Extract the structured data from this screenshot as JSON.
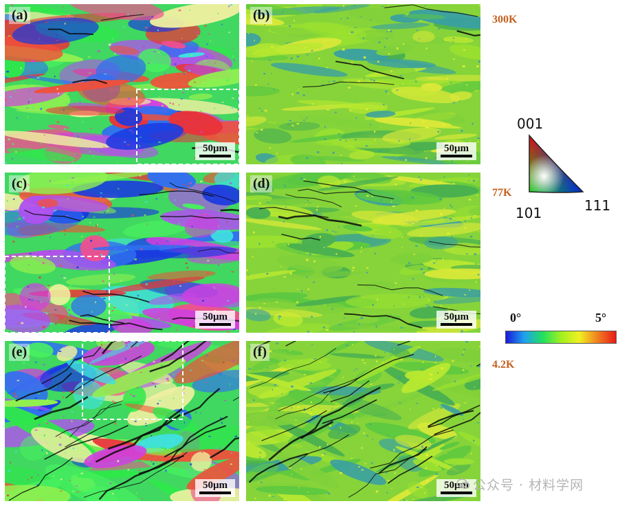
{
  "panels": [
    {
      "id": "a",
      "label": "(a)",
      "scale": "50μm",
      "kind": "ipf",
      "seed": 11,
      "dashes": true
    },
    {
      "id": "b",
      "label": "(b)",
      "scale": "50μm",
      "kind": "kam",
      "seed": 12,
      "dashes": false
    },
    {
      "id": "c",
      "label": "(c)",
      "scale": "50μm",
      "kind": "ipf",
      "seed": 21,
      "dashes": true
    },
    {
      "id": "d",
      "label": "(d)",
      "scale": "50μm",
      "kind": "kam",
      "seed": 22,
      "dashes": false
    },
    {
      "id": "e",
      "label": "(e)",
      "scale": "50μm",
      "kind": "ipf",
      "seed": 31,
      "dashes": true
    },
    {
      "id": "f",
      "label": "(f)",
      "scale": "50μm",
      "kind": "kam",
      "seed": 32,
      "dashes": false
    }
  ],
  "temperatures": [
    "300K",
    "77K",
    "4.2K"
  ],
  "ipf_legend": {
    "top": "001",
    "left": "101",
    "right": "111"
  },
  "kam_legend": {
    "min": "0°",
    "max": "5°",
    "colors": [
      "#1a1ad8",
      "#1fa0f0",
      "#20e060",
      "#a0f020",
      "#f0f020",
      "#f08020",
      "#e81a1a"
    ]
  },
  "watermark": "公众号 · 材料学网",
  "colors": {
    "temperature_label": "#c4601e"
  }
}
